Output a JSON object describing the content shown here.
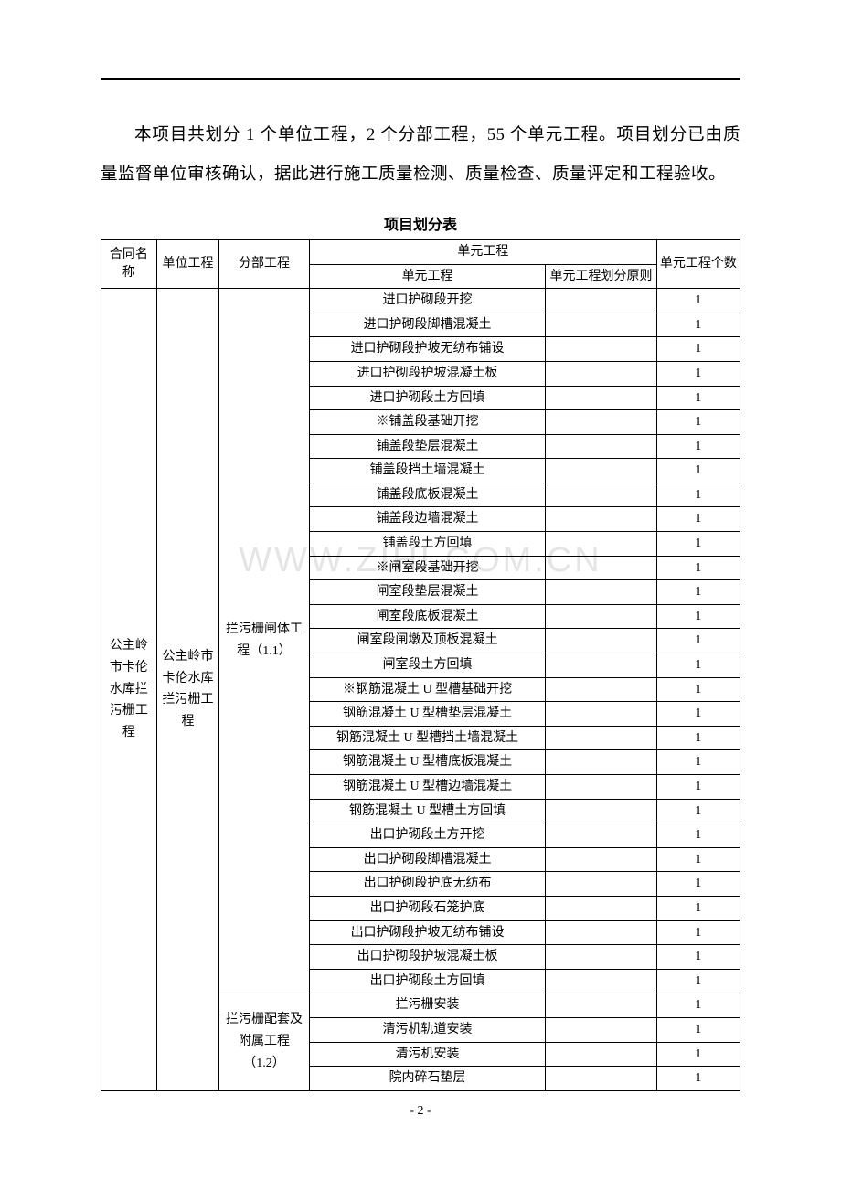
{
  "paragraph": "本项目共划分 1 个单位工程，2 个分部工程，55 个单元工程。项目划分已由质量监督单位审核确认，据此进行施工质量检测、质量检查、质量评定和工程验收。",
  "table_title": "项目划分表",
  "watermark": "WWW.ZIHI.COM.CN",
  "page_number": "- 2 -",
  "headers": {
    "contract_name": "合同名称",
    "unit_project": "单位工程",
    "division_project": "分部工程",
    "element_project_group": "单元工程",
    "element_project": "单元工程",
    "division_principle": "单元工程划分原则",
    "element_count": "单元工程个数"
  },
  "contract": "公主岭市卡伦水库拦污栅工程",
  "unit": "公主岭市卡伦水库拦污栅工程",
  "division1": {
    "name": "拦污栅闸体工程（1.1）",
    "rows": [
      {
        "name": "进口护砌段开挖",
        "principle": "",
        "count": "1"
      },
      {
        "name": "进口护砌段脚槽混凝土",
        "principle": "",
        "count": "1"
      },
      {
        "name": "进口护砌段护坡无纺布铺设",
        "principle": "",
        "count": "1"
      },
      {
        "name": "进口护砌段护坡混凝土板",
        "principle": "",
        "count": "1"
      },
      {
        "name": "进口护砌段土方回填",
        "principle": "",
        "count": "1"
      },
      {
        "name": "※铺盖段基础开挖",
        "principle": "",
        "count": "1"
      },
      {
        "name": "铺盖段垫层混凝土",
        "principle": "",
        "count": "1"
      },
      {
        "name": "铺盖段挡土墙混凝土",
        "principle": "",
        "count": "1"
      },
      {
        "name": "铺盖段底板混凝土",
        "principle": "",
        "count": "1"
      },
      {
        "name": "铺盖段边墙混凝土",
        "principle": "",
        "count": "1"
      },
      {
        "name": "铺盖段土方回填",
        "principle": "",
        "count": "1"
      },
      {
        "name": "※闸室段基础开挖",
        "principle": "",
        "count": "1"
      },
      {
        "name": "闸室段垫层混凝土",
        "principle": "",
        "count": "1"
      },
      {
        "name": "闸室段底板混凝土",
        "principle": "",
        "count": "1"
      },
      {
        "name": "闸室段闸墩及顶板混凝土",
        "principle": "",
        "count": "1"
      },
      {
        "name": "闸室段土方回填",
        "principle": "",
        "count": "1"
      },
      {
        "name": "※钢筋混凝土 U 型槽基础开挖",
        "principle": "",
        "count": "1"
      },
      {
        "name": "钢筋混凝土 U 型槽垫层混凝土",
        "principle": "",
        "count": "1"
      },
      {
        "name": "钢筋混凝土 U 型槽挡土墙混凝土",
        "principle": "",
        "count": "1"
      },
      {
        "name": "钢筋混凝土 U 型槽底板混凝土",
        "principle": "",
        "count": "1"
      },
      {
        "name": "钢筋混凝土 U 型槽边墙混凝土",
        "principle": "",
        "count": "1"
      },
      {
        "name": "钢筋混凝土 U 型槽土方回填",
        "principle": "",
        "count": "1"
      },
      {
        "name": "出口护砌段土方开挖",
        "principle": "",
        "count": "1"
      },
      {
        "name": "出口护砌段脚槽混凝土",
        "principle": "",
        "count": "1"
      },
      {
        "name": "出口护砌段护底无纺布",
        "principle": "",
        "count": "1"
      },
      {
        "name": "出口护砌段石笼护底",
        "principle": "",
        "count": "1"
      },
      {
        "name": "出口护砌段护坡无纺布铺设",
        "principle": "",
        "count": "1"
      },
      {
        "name": "出口护砌段护坡混凝土板",
        "principle": "",
        "count": "1"
      },
      {
        "name": "出口护砌段土方回填",
        "principle": "",
        "count": "1"
      }
    ]
  },
  "division2": {
    "name": "拦污栅配套及附属工程（1.2）",
    "rows": [
      {
        "name": "拦污栅安装",
        "principle": "",
        "count": "1"
      },
      {
        "name": "清污机轨道安装",
        "principle": "",
        "count": "1"
      },
      {
        "name": "清污机安装",
        "principle": "",
        "count": "1"
      },
      {
        "name": "院内碎石垫层",
        "principle": "",
        "count": "1"
      }
    ]
  }
}
